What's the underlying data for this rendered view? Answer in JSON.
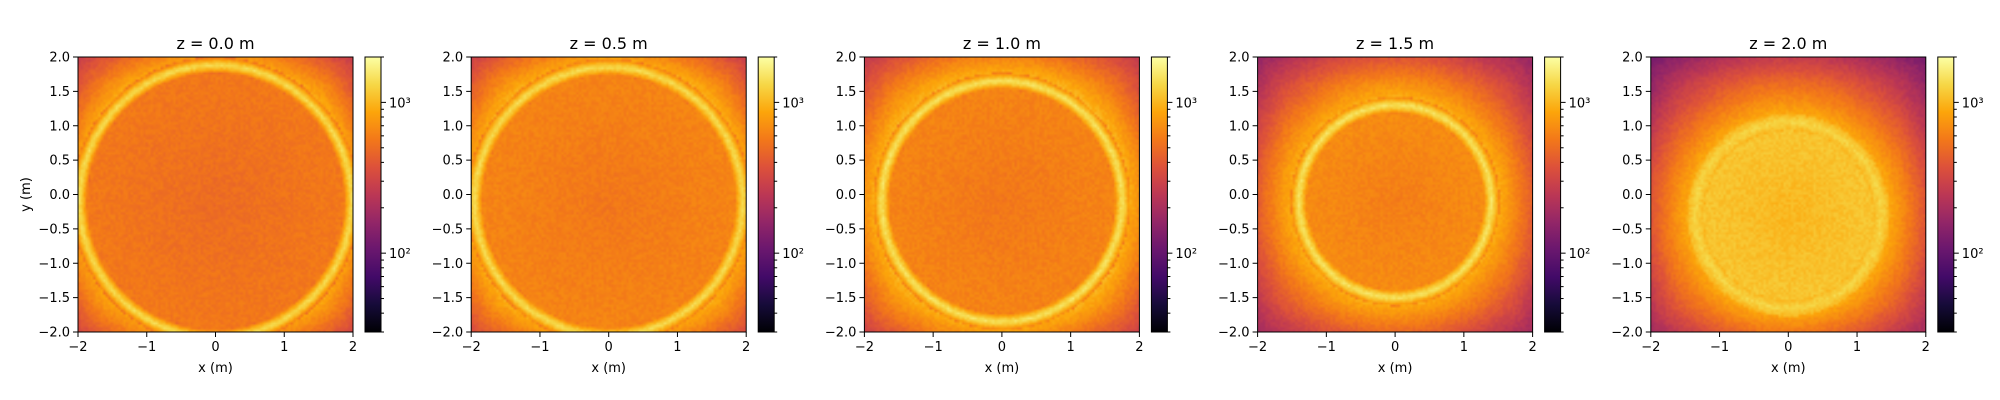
{
  "figure": {
    "panel_titles": [
      "z = 0.0 m",
      "z = 0.5 m",
      "z = 1.0 m",
      "z = 1.5 m",
      "z = 2.0 m"
    ],
    "xlabel": "x (m)",
    "ylabel": "y (m)"
  },
  "chart_data": [
    {
      "type": "heatmap",
      "title": "z = 0.0 m",
      "xlabel": "x (m)",
      "ylabel": "y (m)",
      "xlim": [
        -2,
        2
      ],
      "ylim": [
        -2,
        2
      ],
      "xticks": [
        -2,
        -1,
        0,
        1,
        2
      ],
      "yticks": [
        -2.0,
        -1.5,
        -1.0,
        -0.5,
        0.0,
        0.5,
        1.0,
        1.5,
        2.0
      ],
      "colorbar": {
        "scale": "log",
        "ticks": [
          100,
          1000
        ],
        "tick_labels": [
          "10²",
          "10³"
        ],
        "range": [
          30,
          2000
        ]
      },
      "colormap": "inferno",
      "pattern": {
        "disk_center": [
          0.0,
          -0.1
        ],
        "disk_radius": 1.98,
        "disk_value": 500,
        "ring_peak": 1400,
        "edge_ring_value": 1000,
        "outside_value": 120
      }
    },
    {
      "type": "heatmap",
      "title": "z = 0.5 m",
      "xlabel": "x (m)",
      "ylabel": "",
      "xlim": [
        -2,
        2
      ],
      "ylim": [
        -2,
        2
      ],
      "xticks": [
        -2,
        -1,
        0,
        1,
        2
      ],
      "yticks": [
        -2.0,
        -1.5,
        -1.0,
        -0.5,
        0.0,
        0.5,
        1.0,
        1.5,
        2.0
      ],
      "colorbar": {
        "scale": "log",
        "ticks": [
          100,
          1000
        ],
        "tick_labels": [
          "10²",
          "10³"
        ],
        "range": [
          30,
          2000
        ]
      },
      "colormap": "inferno",
      "pattern": {
        "disk_center": [
          0.0,
          -0.1
        ],
        "disk_radius": 1.95,
        "disk_value": 560,
        "ring_peak": 1400,
        "edge_ring_value": 1050,
        "outside_value": 180
      }
    },
    {
      "type": "heatmap",
      "title": "z = 1.0 m",
      "xlabel": "x (m)",
      "ylabel": "",
      "xlim": [
        -2,
        2
      ],
      "ylim": [
        -2,
        2
      ],
      "xticks": [
        -2,
        -1,
        0,
        1,
        2
      ],
      "yticks": [
        -2.0,
        -1.5,
        -1.0,
        -0.5,
        0.0,
        0.5,
        1.0,
        1.5,
        2.0
      ],
      "colorbar": {
        "scale": "log",
        "ticks": [
          100,
          1000
        ],
        "tick_labels": [
          "10²",
          "10³"
        ],
        "range": [
          30,
          2000
        ]
      },
      "colormap": "inferno",
      "pattern": {
        "disk_center": [
          0.0,
          -0.1
        ],
        "disk_radius": 1.75,
        "disk_value": 560,
        "ring_peak": 1500,
        "edge_ring_value": 1050,
        "outside_value": 300
      }
    },
    {
      "type": "heatmap",
      "title": "z = 1.5 m",
      "xlabel": "x (m)",
      "ylabel": "",
      "xlim": [
        -2,
        2
      ],
      "ylim": [
        -2,
        2
      ],
      "xticks": [
        -2,
        -1,
        0,
        1,
        2
      ],
      "yticks": [
        -2.0,
        -1.5,
        -1.0,
        -0.5,
        0.0,
        0.5,
        1.0,
        1.5,
        2.0
      ],
      "colorbar": {
        "scale": "log",
        "ticks": [
          100,
          1000
        ],
        "tick_labels": [
          "10²",
          "10³"
        ],
        "range": [
          30,
          2000
        ]
      },
      "colormap": "inferno",
      "pattern": {
        "disk_center": [
          0.0,
          -0.1
        ],
        "disk_radius": 1.4,
        "disk_value": 600,
        "ring_peak": 1500,
        "edge_ring_value": 1000,
        "outside_value": 220
      }
    },
    {
      "type": "heatmap",
      "title": "z = 2.0 m",
      "xlabel": "x (m)",
      "ylabel": "",
      "xlim": [
        -2,
        2
      ],
      "ylim": [
        -2,
        2
      ],
      "xticks": [
        -2,
        -1,
        0,
        1,
        2
      ],
      "yticks": [
        -2.0,
        -1.5,
        -1.0,
        -0.5,
        0.0,
        0.5,
        1.0,
        1.5,
        2.0
      ],
      "colorbar": {
        "scale": "log",
        "ticks": [
          100,
          1000
        ],
        "tick_labels": [
          "10²",
          "10³"
        ],
        "range": [
          30,
          2000
        ]
      },
      "colormap": "inferno",
      "pattern": {
        "disk_center": [
          0.0,
          -0.3
        ],
        "disk_radius": 1.35,
        "disk_value": 1000,
        "ring_peak": 1300,
        "edge_ring_value": 1000,
        "outside_value": 160
      }
    }
  ]
}
